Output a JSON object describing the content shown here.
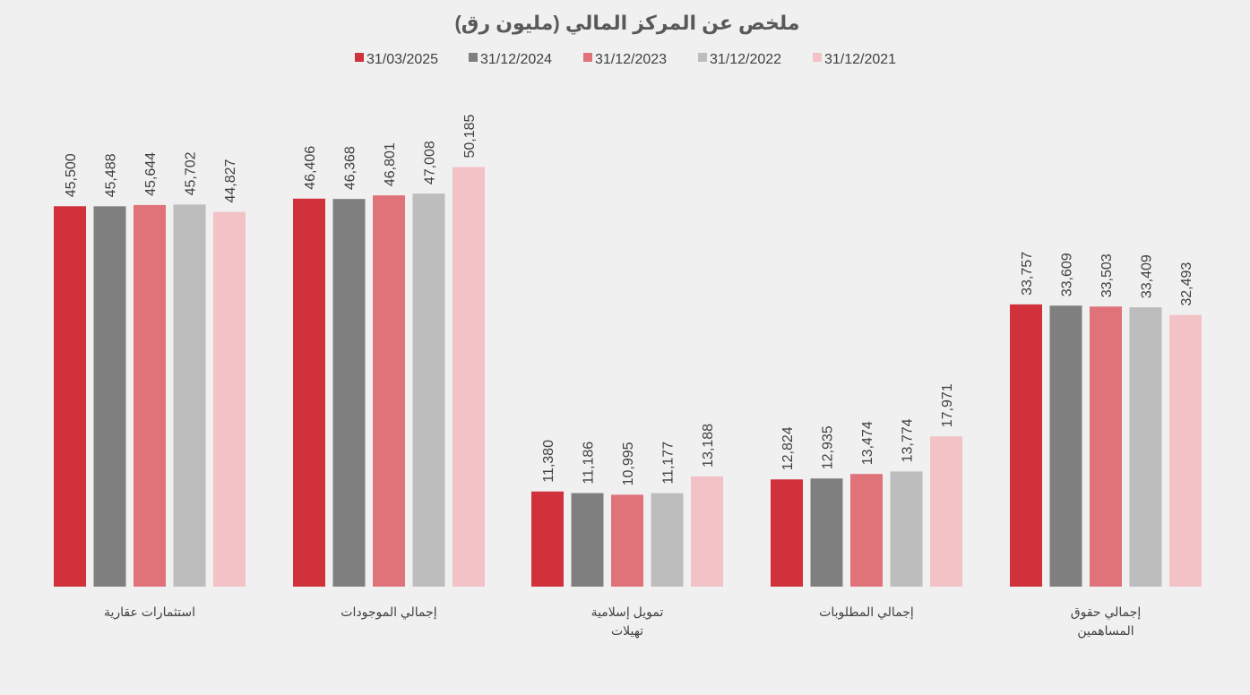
{
  "chart_data": {
    "type": "bar",
    "title": "ملخص عن المركز المالي (مليون رق)",
    "legend_position": "top",
    "grid": false,
    "ylim": [
      0,
      55000
    ],
    "categories": [
      [
        "استثمارات عقارية"
      ],
      [
        "إجمالي الموجودات"
      ],
      [
        "تمويل إسلامية",
        "تهيلات"
      ],
      [
        "إجمالي المطلوبات"
      ],
      [
        "إجمالي حقوق",
        "المساهمين"
      ]
    ],
    "series": [
      {
        "name": "31/03/2025",
        "color": "#d0313b",
        "values": [
          45500,
          46406,
          11380,
          12824,
          33757
        ]
      },
      {
        "name": "31/12/2024",
        "color": "#7f7f7f",
        "values": [
          45488,
          46368,
          11186,
          12935,
          33609
        ]
      },
      {
        "name": "31/12/2023",
        "color": "#e0737a",
        "values": [
          45644,
          46801,
          10995,
          13474,
          33503
        ]
      },
      {
        "name": "31/12/2022",
        "color": "#bdbdbd",
        "values": [
          45702,
          47008,
          11177,
          13774,
          33409
        ]
      },
      {
        "name": "31/12/2021",
        "color": "#f3c2c6",
        "values": [
          44827,
          50185,
          13188,
          17971,
          32493
        ]
      }
    ]
  }
}
